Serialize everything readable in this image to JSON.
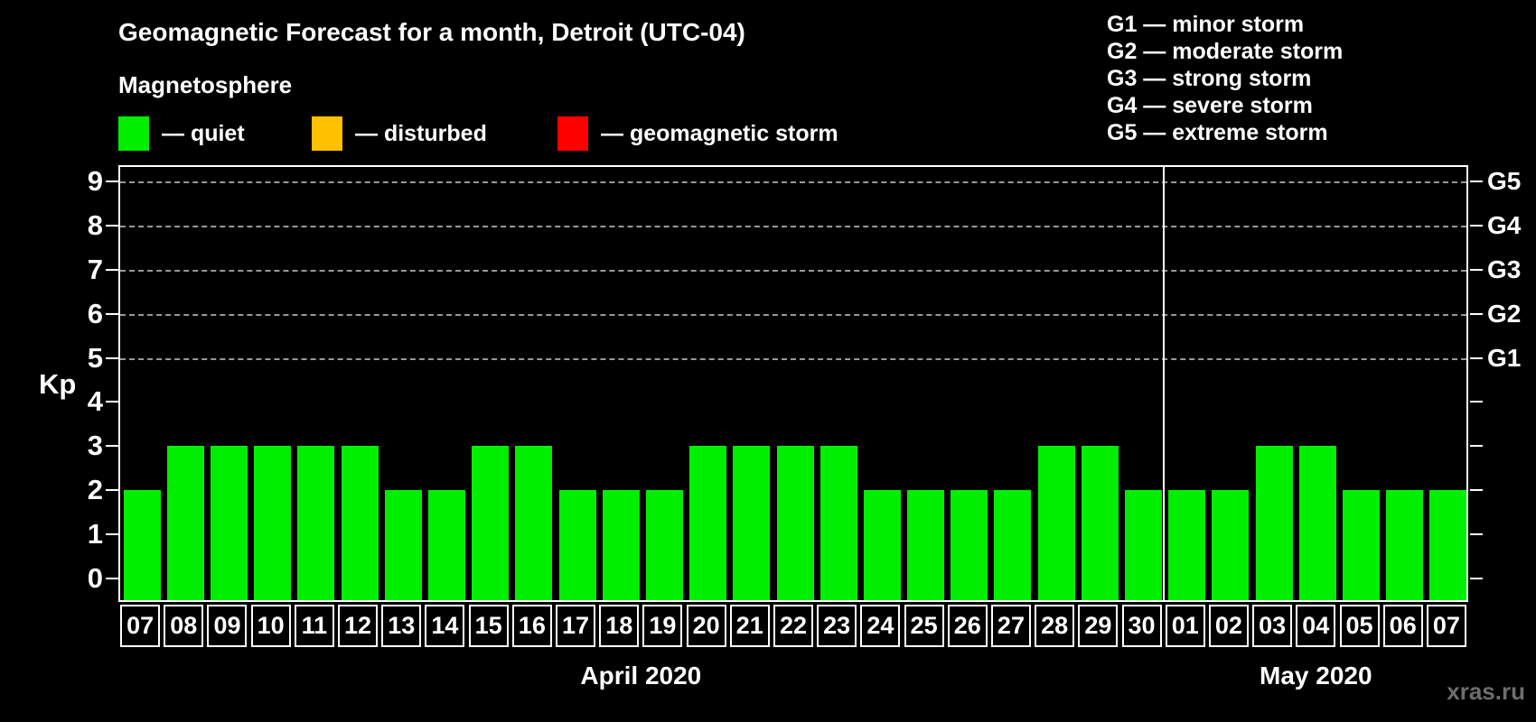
{
  "header": {
    "title": "Geomagnetic Forecast for a month, Detroit (UTC-04)",
    "subtitle": "Magnetosphere"
  },
  "legend": {
    "items": [
      {
        "key": "quiet",
        "label": "— quiet",
        "color": "#00ee00"
      },
      {
        "key": "disturbed",
        "label": "— disturbed",
        "color": "#ffc000"
      },
      {
        "key": "storm",
        "label": "— geomagnetic storm",
        "color": "#ff0000"
      }
    ]
  },
  "g_legend": {
    "items": [
      "G1 — minor storm",
      "G2 — moderate storm",
      "G3 — strong storm",
      "G4 — severe storm",
      "G5 — extreme storm"
    ]
  },
  "chart_data": {
    "type": "bar",
    "title": "Geomagnetic Forecast for a month, Detroit (UTC-04)",
    "ylabel": "Kp",
    "ylim": [
      0,
      9
    ],
    "yticks": [
      0,
      1,
      2,
      3,
      4,
      5,
      6,
      7,
      8,
      9
    ],
    "gridlines_at": [
      5,
      6,
      7,
      8,
      9
    ],
    "right_axis_labels": [
      {
        "kp": 5,
        "label": "G1"
      },
      {
        "kp": 6,
        "label": "G2"
      },
      {
        "kp": 7,
        "label": "G3"
      },
      {
        "kp": 8,
        "label": "G4"
      },
      {
        "kp": 9,
        "label": "G5"
      }
    ],
    "categories": [
      "07",
      "08",
      "09",
      "10",
      "11",
      "12",
      "13",
      "14",
      "15",
      "16",
      "17",
      "18",
      "19",
      "20",
      "21",
      "22",
      "23",
      "24",
      "25",
      "26",
      "27",
      "28",
      "29",
      "30",
      "01",
      "02",
      "03",
      "04",
      "05",
      "06",
      "07"
    ],
    "values": [
      2,
      3,
      3,
      3,
      3,
      3,
      2,
      2,
      3,
      3,
      2,
      2,
      2,
      3,
      3,
      3,
      3,
      2,
      2,
      2,
      2,
      3,
      3,
      2,
      2,
      2,
      3,
      3,
      2,
      2,
      2
    ],
    "months": [
      {
        "label": "April 2020",
        "count": 24
      },
      {
        "label": "May 2020",
        "count": 7
      }
    ],
    "colors": {
      "quiet": "#00ee00",
      "disturbed": "#ffc000",
      "storm": "#ff0000"
    },
    "color_rule": {
      "quiet_max": 3,
      "disturbed_max": 4
    },
    "legend_position": "top-left",
    "grid": "dashed horizontal at Kp 5-9 only"
  },
  "watermark": "xras.ru"
}
